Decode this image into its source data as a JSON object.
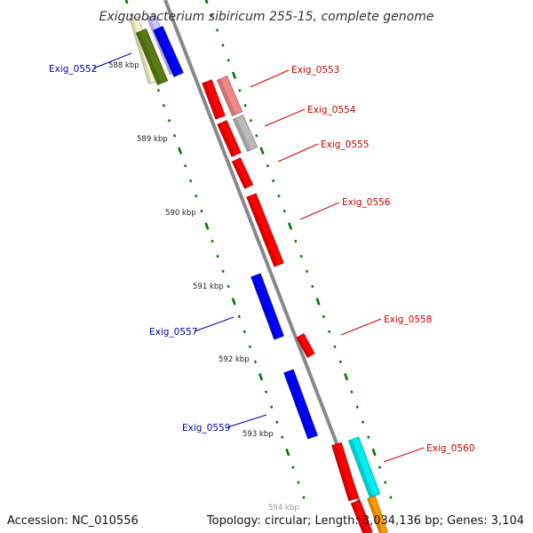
{
  "title": "Exiguobacterium sibiricum 255-15, complete genome",
  "accession_text": "Accession: NC_010556",
  "summary_text": "Topology: circular; Length: 3,034,136 bp; Genes: 3,104",
  "colors": {
    "forward_gene": "#ff0000",
    "reverse_gene": "#0000ff",
    "forward_label": "#cc0000",
    "reverse_label": "#0000aa",
    "tick": "#007700",
    "backbone": "#888888"
  },
  "position_labels": [
    "588 kbp",
    "589 kbp",
    "590 kbp",
    "591 kbp",
    "592 kbp",
    "593 kbp",
    "594 kbp"
  ],
  "genes": [
    {
      "id": "g0",
      "label": "",
      "color": "#f2f2cc"
    },
    {
      "id": "g1",
      "label": "",
      "color": "#c8c8ff"
    },
    {
      "id": "g2",
      "label": "",
      "color": "#5a7a14"
    },
    {
      "id": "g3",
      "label": "",
      "color": "#0000ff"
    },
    {
      "id": "g4",
      "label": "",
      "color": "#ff0000"
    },
    {
      "id": "g5",
      "label": "",
      "color": "#ee8888"
    },
    {
      "id": "g6",
      "label": "",
      "color": "#ff0000"
    },
    {
      "id": "g7",
      "label": "",
      "color": "#bbbbbb"
    },
    {
      "id": "g8",
      "label": "",
      "color": "#ff0000"
    },
    {
      "id": "g9",
      "label": "",
      "color": "#ff0000"
    },
    {
      "id": "g10",
      "label": "",
      "color": "#0000ff"
    },
    {
      "id": "g11",
      "label": "",
      "color": "#ff0000"
    },
    {
      "id": "g12",
      "label": "",
      "color": "#0000ff"
    },
    {
      "id": "g13",
      "label": "",
      "color": "#ff0000"
    },
    {
      "id": "g14",
      "label": "",
      "color": "#00eeee"
    },
    {
      "id": "g15",
      "label": "",
      "color": "#ff0000"
    },
    {
      "id": "g16",
      "label": "",
      "color": "#ff9900"
    }
  ],
  "gene_labels": [
    {
      "text": "Exig_0552",
      "strand": "reverse"
    },
    {
      "text": "Exig_0553",
      "strand": "forward"
    },
    {
      "text": "Exig_0554",
      "strand": "forward"
    },
    {
      "text": "Exig_0555",
      "strand": "forward"
    },
    {
      "text": "Exig_0556",
      "strand": "forward"
    },
    {
      "text": "Exig_0557",
      "strand": "reverse"
    },
    {
      "text": "Exig_0558",
      "strand": "forward"
    },
    {
      "text": "Exig_0559",
      "strand": "reverse"
    },
    {
      "text": "Exig_0560",
      "strand": "forward"
    }
  ]
}
